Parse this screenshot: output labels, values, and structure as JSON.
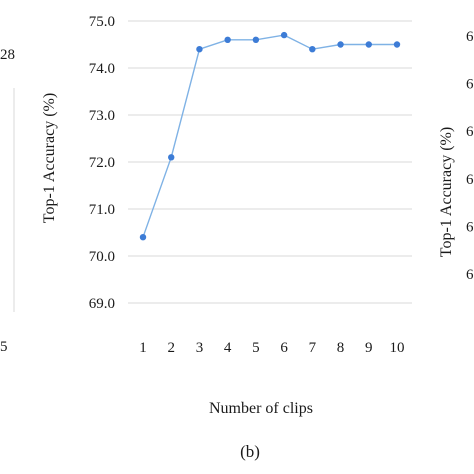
{
  "left_fragment": {
    "tick_label_top": "28",
    "tick_label_bottom": "5"
  },
  "right_fragment": {
    "ylabel": "Top-1 Accuracy (%)",
    "tick_labels": [
      "6",
      "6",
      "6",
      "6",
      "6",
      "6"
    ]
  },
  "chart_data": {
    "type": "line",
    "title": "",
    "xlabel": "Number of clips",
    "ylabel": "Top-1 Accuracy (%)",
    "caption": "(b)",
    "x": [
      1,
      2,
      3,
      4,
      5,
      6,
      7,
      8,
      9,
      10
    ],
    "x_tick_labels": [
      "1",
      "2",
      "3",
      "4",
      "5",
      "6",
      "7",
      "8",
      "9",
      "10"
    ],
    "series": [
      {
        "values": [
          70.4,
          72.1,
          74.4,
          74.6,
          74.6,
          74.7,
          74.4,
          74.5,
          74.5,
          74.5
        ]
      }
    ],
    "y_ticks": [
      69.0,
      70.0,
      71.0,
      72.0,
      73.0,
      74.0,
      75.0
    ],
    "y_tick_labels": [
      "69.0",
      "70.0",
      "71.0",
      "72.0",
      "73.0",
      "74.0",
      "75.0"
    ],
    "ylim": [
      69.0,
      75.0
    ],
    "xlim": [
      1,
      10
    ],
    "grid": true,
    "legend": "none",
    "line_color": "#7fb2e5",
    "marker_color": "#3d7cd6"
  }
}
